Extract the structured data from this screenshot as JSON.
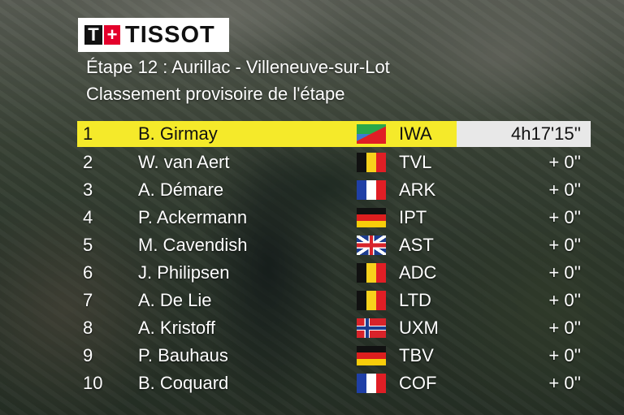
{
  "brand": {
    "name": "TISSOT",
    "mark_t": "T",
    "mark_plus": "+"
  },
  "stage": {
    "title": "Étape 12 : Aurillac - Villeneuve-sur-Lot",
    "subtitle": "Classement provisoire de l'étape"
  },
  "colors": {
    "leader_bg": "#f5ea2a",
    "time_bg": "#e8e8e8"
  },
  "results": [
    {
      "pos": "1",
      "name": "B. Girmay",
      "flag": "eritrea-flag",
      "team": "IWA",
      "time": "4h17'15''"
    },
    {
      "pos": "2",
      "name": "W. van Aert",
      "flag": "belgium-flag",
      "team": "TVL",
      "time": "+ 0''"
    },
    {
      "pos": "3",
      "name": "A. Démare",
      "flag": "france-flag",
      "team": "ARK",
      "time": "+ 0''"
    },
    {
      "pos": "4",
      "name": "P. Ackermann",
      "flag": "germany-flag",
      "team": "IPT",
      "time": "+ 0''"
    },
    {
      "pos": "5",
      "name": "M. Cavendish",
      "flag": "uk-flag",
      "team": "AST",
      "time": "+ 0''"
    },
    {
      "pos": "6",
      "name": "J. Philipsen",
      "flag": "belgium-flag",
      "team": "ADC",
      "time": "+ 0''"
    },
    {
      "pos": "7",
      "name": "A. De Lie",
      "flag": "belgium-flag",
      "team": "LTD",
      "time": "+ 0''"
    },
    {
      "pos": "8",
      "name": "A. Kristoff",
      "flag": "norway-flag",
      "team": "UXM",
      "time": "+ 0''"
    },
    {
      "pos": "9",
      "name": "P. Bauhaus",
      "flag": "germany-flag",
      "team": "TBV",
      "time": "+ 0''"
    },
    {
      "pos": "10",
      "name": "B. Coquard",
      "flag": "france-flag",
      "team": "COF",
      "time": "+ 0''"
    }
  ]
}
